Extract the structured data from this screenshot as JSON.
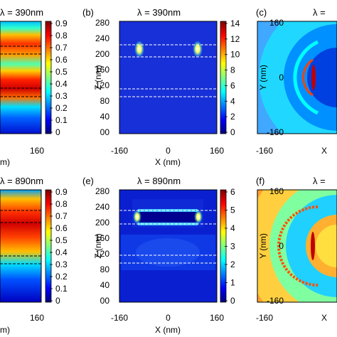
{
  "colormap": [
    "#00007f",
    "#0000ff",
    "#007fff",
    "#00ffff",
    "#7fff7f",
    "#ffff00",
    "#ff7f00",
    "#ff0000",
    "#7f0000"
  ],
  "row_top": {
    "title_a": "λ = 390nm",
    "title_b": "λ = 390nm",
    "title_c": "λ =",
    "panel_b": "(b)",
    "panel_c": "(c)",
    "cbar_a_ticks": [
      "0.9",
      "0.8",
      "0.7",
      "0.6",
      "0.5",
      "0.4",
      "0.3",
      "0.2",
      "0.1",
      "0"
    ],
    "cbar_b_ticks": [
      "14",
      "12",
      "10",
      "8",
      "6",
      "4",
      "2",
      "0"
    ],
    "z_ticks_b": [
      "280",
      "240",
      "200",
      "160",
      "120",
      "80",
      "40",
      "00"
    ],
    "y_ticks_c": [
      "160",
      "0",
      "-160"
    ],
    "x_ticks_b": [
      "-160",
      "0",
      "160"
    ],
    "x_ticks_c": [
      "-160",
      "X"
    ],
    "x_tick_a": "160",
    "xlabel_a": "m)",
    "xlabel_b": "X (nm)",
    "ylabel_b": "Z (nm)",
    "ylabel_c": "Y (nm)"
  },
  "row_bottom": {
    "title_d": "λ = 890nm",
    "title_e": "λ = 890nm",
    "title_f": "λ =",
    "panel_e": "(e)",
    "panel_f": "(f)",
    "cbar_d_ticks": [
      "0.9",
      "0.8",
      "0.7",
      "0.6",
      "0.5",
      "0.4",
      "0.3",
      "0.2",
      "0.1",
      "0"
    ],
    "cbar_e_ticks": [
      "6",
      "5",
      "4",
      "3",
      "2",
      "1",
      "0"
    ],
    "z_ticks_e": [
      "280",
      "240",
      "200",
      "160",
      "120",
      "80",
      "40",
      "00"
    ],
    "y_ticks_f": [
      "160",
      "0",
      "-160"
    ],
    "x_ticks_e": [
      "-160",
      "0",
      "160"
    ],
    "x_ticks_f": [
      "-160",
      "X"
    ],
    "x_tick_d": "160",
    "xlabel_d": "m)",
    "xlabel_e": "X (nm)",
    "ylabel_e": "Z (nm)",
    "ylabel_f": "Y (nm)"
  }
}
